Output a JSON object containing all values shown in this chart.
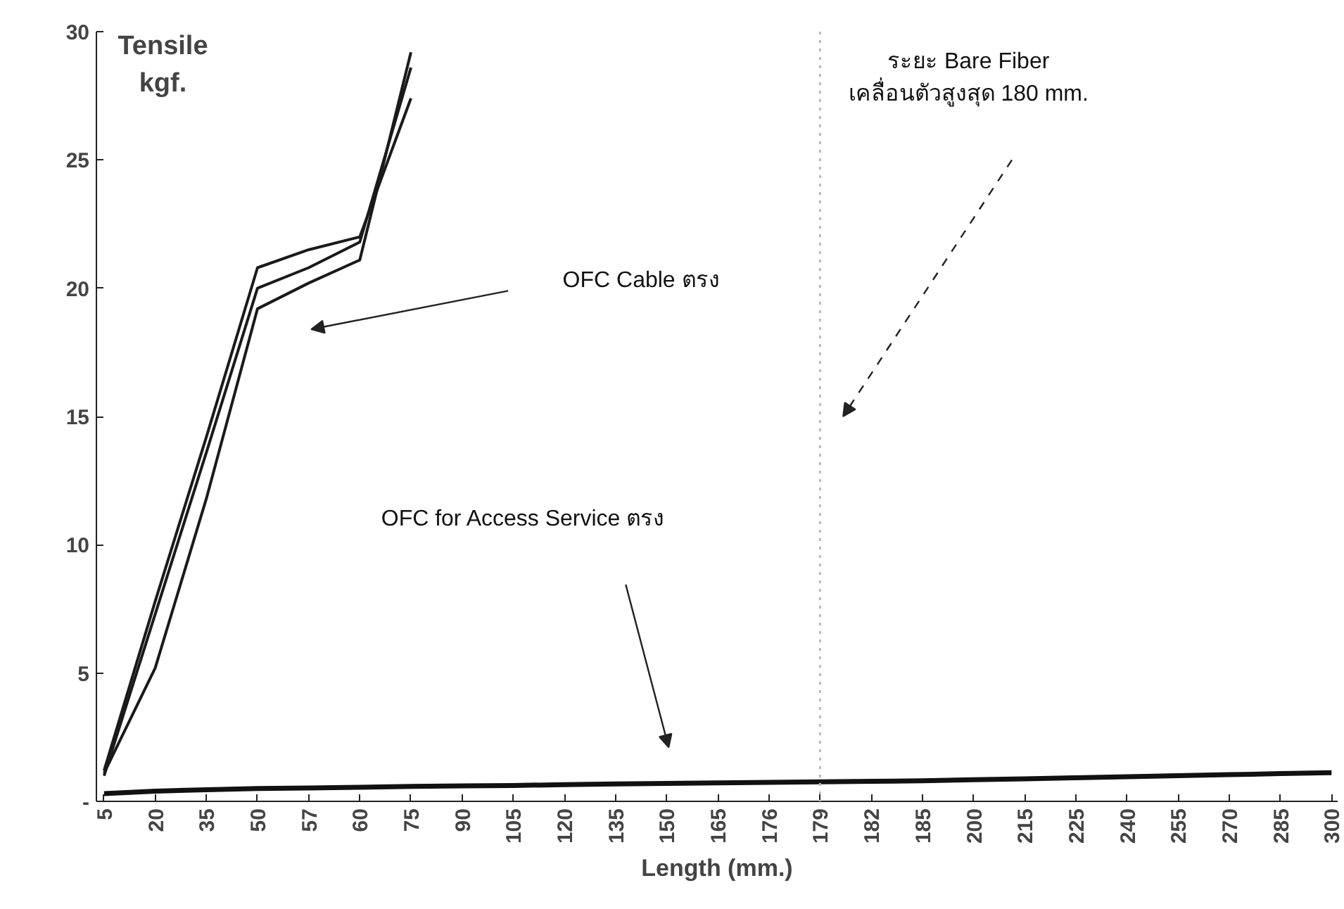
{
  "chart_data": {
    "type": "line",
    "ylabel": "Tensile\nkgf.",
    "xlabel": "Length (mm.)",
    "categories": [
      "5",
      "20",
      "35",
      "50",
      "57",
      "60",
      "75",
      "90",
      "105",
      "120",
      "135",
      "150",
      "165",
      "176",
      "179",
      "182",
      "185",
      "200",
      "215",
      "225",
      "240",
      "255",
      "270",
      "285",
      "300"
    ],
    "series": [
      {
        "color": "#1a1a1a",
        "values": [
          1.2,
          7.8,
          14.2,
          20.8,
          21.5,
          22.0,
          27.4,
          null,
          null,
          null,
          null,
          null,
          null,
          null,
          null,
          null,
          null,
          null,
          null,
          null,
          null,
          null,
          null,
          null,
          null
        ]
      },
      {
        "color": "#1a1a1a",
        "values": [
          1.0,
          7.3,
          13.6,
          20.0,
          20.8,
          21.8,
          28.6,
          null,
          null,
          null,
          null,
          null,
          null,
          null,
          null,
          null,
          null,
          null,
          null,
          null,
          null,
          null,
          null,
          null,
          null
        ]
      },
      {
        "color": "#1a1a1a",
        "values": [
          1.1,
          5.2,
          11.8,
          19.2,
          20.2,
          21.1,
          29.2,
          null,
          null,
          null,
          null,
          null,
          null,
          null,
          null,
          null,
          null,
          null,
          null,
          null,
          null,
          null,
          null,
          null,
          null
        ]
      },
      {
        "color": "#111111",
        "values": [
          0.3,
          0.4,
          0.45,
          0.5,
          0.52,
          0.55,
          0.58,
          0.6,
          0.62,
          0.65,
          0.68,
          0.7,
          0.72,
          0.74,
          0.76,
          0.78,
          0.8,
          0.84,
          0.88,
          0.92,
          0.96,
          1.0,
          1.04,
          1.08,
          1.12
        ]
      }
    ],
    "ylim": [
      0,
      30
    ],
    "yticks": [
      {
        "value": 0,
        "label": "-"
      },
      5,
      10,
      15,
      20,
      25,
      30
    ],
    "grid": false,
    "marker": "none",
    "line_style": "solid",
    "ref_lines": [
      {
        "axis": "x",
        "value": "179",
        "color": "#bbbbbb",
        "line_style": "dotted"
      }
    ],
    "annotations": [
      "OFC Cable ตรง",
      "OFC for Access Service ตรง",
      "ระยะ Bare Fiber\nเคลื่อนตัวสูงสุด 180 mm."
    ]
  }
}
